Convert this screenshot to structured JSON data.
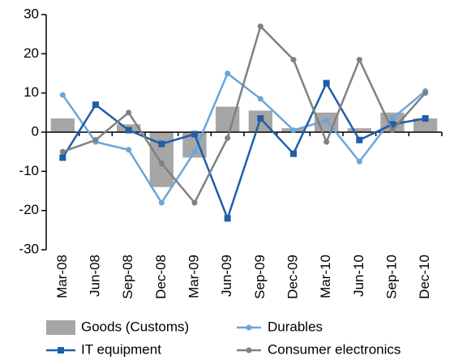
{
  "chart_data": {
    "type": "bar-line",
    "categories": [
      "Mar-08",
      "Jun-08",
      "Sep-08",
      "Dec-08",
      "Mar-09",
      "Jun-09",
      "Sep-09",
      "Dec-09",
      "Mar-10",
      "Jun-10",
      "Sep-10",
      "Dec-10"
    ],
    "series": [
      {
        "name": "Goods (Customs)",
        "kind": "bar",
        "color": "#a6a6a6",
        "values": [
          3.5,
          0,
          2,
          -14,
          -6.5,
          6.5,
          5.5,
          1,
          5,
          1,
          5,
          3.5
        ]
      },
      {
        "name": "Durables",
        "kind": "line",
        "marker": "circle",
        "color": "#6aa6dc",
        "values": [
          9.5,
          -2.5,
          -4.5,
          -18,
          -5,
          15,
          8.5,
          0.5,
          3,
          -7.5,
          3.5,
          10.5
        ]
      },
      {
        "name": "IT equipment",
        "kind": "line",
        "marker": "square",
        "color": "#1f5ea8",
        "values": [
          -6.5,
          7,
          0.5,
          -3,
          -0.5,
          -22,
          3.5,
          -5.5,
          12.5,
          -2,
          2,
          3.5
        ]
      },
      {
        "name": "Consumer electronics",
        "kind": "line",
        "marker": "circle",
        "color": "#808080",
        "values": [
          -5,
          -2,
          5,
          -8,
          -18,
          -1.5,
          27,
          18.5,
          -2.5,
          18.5,
          0.5,
          10
        ]
      }
    ],
    "ylim": [
      -30,
      30
    ],
    "yticks": [
      -30,
      -20,
      -10,
      0,
      10,
      20,
      30
    ],
    "grid": false
  }
}
